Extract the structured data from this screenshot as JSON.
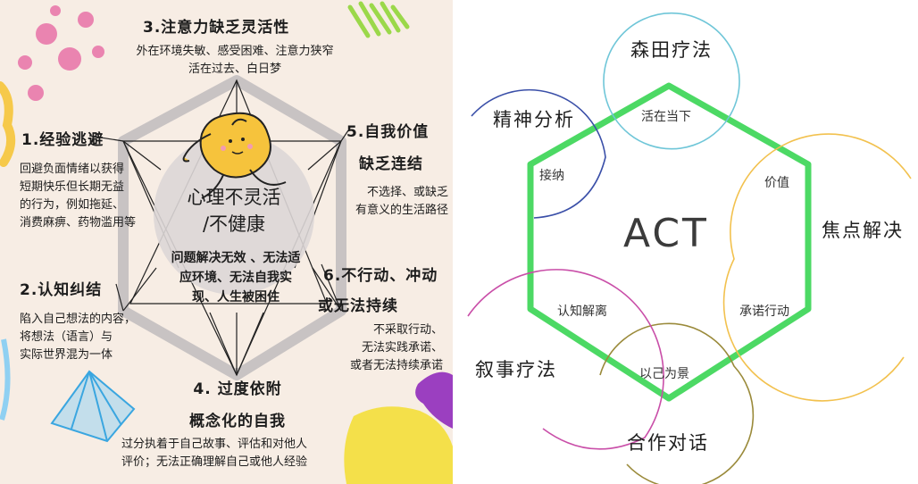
{
  "left_panel": {
    "center_title": [
      "心理不灵活",
      "/不健康"
    ],
    "center_desc": [
      "问题解决无效 、无法适",
      "应环境、无法自我实",
      "现、人生被困住"
    ],
    "items": [
      {
        "heading": "3.注意力缺乏灵活性",
        "body": [
          "外在环境失敏、感受困难、注意力狭窄",
          "活在过去、白日梦"
        ]
      },
      {
        "heading": "1.经验逃避",
        "body": [
          "回避负面情绪以获得",
          "短期快乐但长期无益",
          "的行为，例如拖延、",
          "消费麻痹、药物滥用等"
        ]
      },
      {
        "heading": [
          "5.自我价值",
          "缺乏连结"
        ],
        "body": [
          "不选择、或缺乏",
          "有意义的生活路径"
        ]
      },
      {
        "heading": "2.认知纠结",
        "body": [
          "陷入自己想法的内容，",
          "将想法（语言）与",
          "实际世界混为一体"
        ]
      },
      {
        "heading": [
          "6.不行动、冲动",
          "或无法持续"
        ],
        "body": [
          "不采取行动、",
          "无法实践承诺、",
          "或者无法持续承诺"
        ]
      },
      {
        "heading": [
          "4. 过度依附",
          "概念化的自我"
        ],
        "body": [
          "过分执着于自己故事、评估和对他人",
          "评价；无法正确理解自己或他人经验"
        ]
      }
    ]
  },
  "right_panel": {
    "center": "ACT",
    "vertices": [
      "活在当下",
      "价值",
      "承诺行动",
      "以己为景",
      "认知解离",
      "接纳"
    ],
    "therapies": [
      "森田疗法",
      "焦点解决",
      "合作对话",
      "叙事疗法",
      "精神分析"
    ],
    "colors": {
      "hexagon": "#4cd964",
      "morita": "#6fc6d8",
      "solution": "#f2c14e",
      "dialogue": "#9a8a3a",
      "narrative": "#c94ea8",
      "psychoanalysis": "#3a4fa8"
    }
  }
}
